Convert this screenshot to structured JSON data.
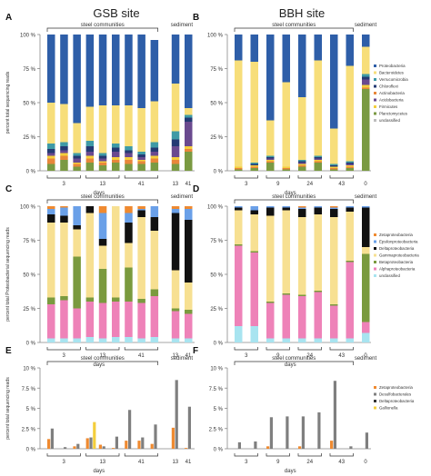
{
  "titles": {
    "left": "GSB site",
    "right": "BBH site"
  },
  "labels": {
    "steel": "steel communities",
    "sediment": "sediment",
    "days": "days",
    "ylabel_AB": "percent total sequencing reads",
    "ylabel_CD": "percent total Proteobacterial sequencing reads",
    "ylabel_EF": "percent total sequencing reads"
  },
  "colors": {
    "Proteobacteria": "#2e5ea8",
    "Bacteroidetes": "#f7de7a",
    "Verrucomicrobia": "#3f9aa6",
    "Chloroflexi": "#243a73",
    "Actinobacteria": "#e8873a",
    "Acidobacteria": "#6a4a8f",
    "Firmicutes": "#f4ce3c",
    "Planctomycetes": "#7a9a42",
    "unclassified": "#bdbdbd",
    "Zeta": "#ef8a30",
    "Epsilon": "#6aa0e8",
    "Delta": "#111111",
    "Gamma": "#f7e092",
    "Beta": "#7a9a3e",
    "Alpha": "#ee82b8",
    "uncl_CD": "#a8e4f0",
    "Zetaproteobacteria": "#ef8a30",
    "Desulfobacterales": "#7f7f7f",
    "Deltaproteobacteria": "#333333",
    "Gallionella": "#f4ce3c"
  },
  "chart_data": [
    {
      "panel": "A",
      "type": "bar",
      "stacked": true,
      "categories": [
        "3",
        "3",
        "3",
        "13",
        "13",
        "13",
        "41",
        "41",
        "41",
        "13",
        "41"
      ],
      "xlabel": "days",
      "ylabel": "percent total sequencing reads",
      "ylim": [
        0,
        100
      ],
      "yticks": [
        "0 %",
        "25 %",
        "50 %",
        "75 %",
        "100 %"
      ],
      "series": [
        {
          "name": "Planctomycetes",
          "values": [
            5,
            8,
            3,
            6,
            4,
            6,
            5,
            5,
            6,
            5,
            14
          ]
        },
        {
          "name": "Actinobacteria",
          "values": [
            4,
            3,
            2,
            3,
            2,
            2,
            3,
            2,
            3,
            3,
            2
          ]
        },
        {
          "name": "Firmicutes",
          "values": [
            2,
            2,
            1,
            2,
            1,
            2,
            2,
            1,
            2,
            2,
            2
          ]
        },
        {
          "name": "Acidobacteria",
          "values": [
            2,
            2,
            3,
            3,
            2,
            4,
            3,
            2,
            3,
            8,
            18
          ]
        },
        {
          "name": "Chloroflexi",
          "values": [
            3,
            3,
            2,
            4,
            2,
            3,
            2,
            2,
            3,
            5,
            3
          ]
        },
        {
          "name": "Verrucomicrobia",
          "values": [
            4,
            3,
            2,
            4,
            2,
            3,
            3,
            2,
            4,
            6,
            2
          ]
        },
        {
          "name": "Bacteroidetes",
          "values": [
            30,
            28,
            22,
            25,
            35,
            28,
            30,
            32,
            30,
            35,
            5
          ]
        },
        {
          "name": "Proteobacteria",
          "values": [
            50,
            51,
            65,
            53,
            52,
            52,
            52,
            54,
            45,
            36,
            54
          ]
        }
      ]
    },
    {
      "panel": "B",
      "type": "bar",
      "stacked": true,
      "categories": [
        "3",
        "3",
        "9",
        "9",
        "24",
        "24",
        "43",
        "43",
        "0"
      ],
      "xlabel": "days",
      "ylabel": "percent total sequencing reads",
      "ylim": [
        0,
        100
      ],
      "yticks": [
        "0 %",
        "25 %",
        "50 %",
        "75 %",
        "100 %"
      ],
      "series": [
        {
          "name": "Planctomycetes",
          "values": [
            1,
            2,
            6,
            1,
            3,
            6,
            1,
            2,
            60
          ]
        },
        {
          "name": "Actinobacteria",
          "values": [
            1,
            1,
            1,
            1,
            1,
            1,
            1,
            1,
            1
          ]
        },
        {
          "name": "Firmicutes",
          "values": [
            1,
            1,
            1,
            1,
            1,
            1,
            1,
            1,
            2
          ]
        },
        {
          "name": "Acidobacteria",
          "values": [
            0,
            0,
            1,
            0,
            1,
            1,
            0,
            1,
            4
          ]
        },
        {
          "name": "Chloroflexi",
          "values": [
            0,
            1,
            1,
            0,
            1,
            1,
            1,
            1,
            2
          ]
        },
        {
          "name": "Verrucomicrobia",
          "values": [
            0,
            1,
            1,
            0,
            1,
            1,
            1,
            1,
            2
          ]
        },
        {
          "name": "Bacteroidetes",
          "values": [
            78,
            74,
            26,
            62,
            46,
            70,
            26,
            70,
            20
          ]
        },
        {
          "name": "Proteobacteria",
          "values": [
            19,
            20,
            63,
            35,
            46,
            19,
            69,
            23,
            9
          ]
        }
      ]
    },
    {
      "panel": "C",
      "type": "bar",
      "stacked": true,
      "categories": [
        "3",
        "3",
        "3",
        "13",
        "13",
        "13",
        "41",
        "41",
        "41",
        "13",
        "41"
      ],
      "xlabel": "days",
      "ylabel": "percent total Proteobacterial sequencing reads",
      "ylim": [
        0,
        100
      ],
      "yticks": [
        "0 %",
        "25 %",
        "50 %",
        "75 %",
        "100 %"
      ],
      "series": [
        {
          "name": "unclassified",
          "values": [
            3,
            3,
            3,
            4,
            3,
            4,
            4,
            3,
            4,
            3,
            3
          ]
        },
        {
          "name": "Alphaproteobacteria",
          "values": [
            25,
            28,
            22,
            26,
            26,
            26,
            26,
            26,
            30,
            20,
            18
          ]
        },
        {
          "name": "Betaproteobacteria",
          "values": [
            5,
            3,
            38,
            3,
            25,
            3,
            25,
            3,
            5,
            2,
            3
          ]
        },
        {
          "name": "Gammaproteobacteria",
          "values": [
            55,
            54,
            20,
            62,
            17,
            67,
            18,
            60,
            43,
            28,
            20
          ]
        },
        {
          "name": "Deltaproteobacteria",
          "values": [
            6,
            5,
            3,
            5,
            5,
            0,
            15,
            5,
            10,
            42,
            46
          ]
        },
        {
          "name": "Epsilonproteobacteria",
          "values": [
            4,
            6,
            14,
            0,
            19,
            0,
            7,
            1,
            8,
            3,
            8
          ]
        },
        {
          "name": "Zetaproteobacteria",
          "values": [
            2,
            1,
            0,
            0,
            5,
            0,
            5,
            2,
            0,
            2,
            2
          ]
        }
      ]
    },
    {
      "panel": "D",
      "type": "bar",
      "stacked": true,
      "categories": [
        "3",
        "3",
        "9",
        "9",
        "24",
        "24",
        "43",
        "43",
        "0"
      ],
      "xlabel": "days",
      "ylabel": "percent total Proteobacterial sequencing reads",
      "ylim": [
        0,
        100
      ],
      "yticks": [
        "0 %",
        "25 %",
        "50 %",
        "75 %",
        "100 %"
      ],
      "series": [
        {
          "name": "unclassified",
          "values": [
            12,
            12,
            3,
            3,
            3,
            3,
            3,
            3,
            7
          ]
        },
        {
          "name": "Alphaproteobacteria",
          "values": [
            59,
            54,
            26,
            32,
            31,
            34,
            24,
            56,
            8
          ]
        },
        {
          "name": "Betaproteobacteria",
          "values": [
            1,
            1,
            1,
            1,
            1,
            1,
            1,
            1,
            50
          ]
        },
        {
          "name": "Gammaproteobacteria",
          "values": [
            25,
            27,
            63,
            61,
            57,
            56,
            64,
            36,
            5
          ]
        },
        {
          "name": "Deltaproteobacteria",
          "values": [
            2,
            3,
            6,
            2,
            6,
            5,
            6,
            3,
            29
          ]
        },
        {
          "name": "Epsilonproteobacteria",
          "values": [
            1,
            3,
            1,
            1,
            1,
            1,
            1,
            1,
            1
          ]
        },
        {
          "name": "Zetaproteobacteria",
          "values": [
            0,
            0,
            0,
            0,
            1,
            0,
            1,
            0,
            0
          ]
        }
      ]
    },
    {
      "panel": "E",
      "type": "bar",
      "categories": [
        "3",
        "3",
        "3",
        "13",
        "13",
        "13",
        "41",
        "41",
        "41",
        "13",
        "41"
      ],
      "xlabel": "days",
      "ylabel": "percent total sequencing reads",
      "ylim": [
        0,
        10
      ],
      "yticks": [
        "0 %",
        "2.5 %",
        "5 %",
        "7.5 %",
        "10 %"
      ],
      "series": [
        {
          "name": "Zetaproteobacteria",
          "values": [
            1.2,
            0,
            0.3,
            1.3,
            0.5,
            0.1,
            1.0,
            1.0,
            0.6,
            2.6,
            0.1
          ]
        },
        {
          "name": "Desulfobacterales",
          "values": [
            2.5,
            0.2,
            0.6,
            1.4,
            0.3,
            1.5,
            4.8,
            1.4,
            3.0,
            8.5,
            5.2
          ]
        },
        {
          "name": "Gallionella",
          "values": [
            0,
            0,
            0,
            3.3,
            0,
            0,
            0,
            0,
            0,
            0,
            0
          ]
        }
      ]
    },
    {
      "panel": "F",
      "type": "bar",
      "categories": [
        "3",
        "3",
        "9",
        "9",
        "24",
        "24",
        "43",
        "43",
        "0"
      ],
      "xlabel": "days",
      "ylabel": "percent total sequencing reads",
      "ylim": [
        0,
        10
      ],
      "yticks": [
        "0 %",
        "2.5 %",
        "5 %",
        "7.5 %",
        "10 %"
      ],
      "series": [
        {
          "name": "Zetaproteobacteria",
          "values": [
            0,
            0,
            0.3,
            0,
            0.3,
            0,
            1.0,
            0,
            0
          ]
        },
        {
          "name": "Desulfobacterales",
          "values": [
            0.8,
            0.9,
            3.9,
            4.0,
            4.0,
            4.5,
            8.4,
            0.3,
            2.0
          ]
        },
        {
          "name": "Deltaproteobacteria",
          "values": [
            0,
            0,
            0,
            0,
            0,
            0,
            0,
            0,
            0
          ]
        }
      ]
    }
  ],
  "legends": {
    "AB": [
      "Proteobacteria",
      "Bacteroidetes",
      "Verrucomicrobia",
      "Chloroflexi",
      "Actinobacteria",
      "Acidobacteria",
      "Firmicutes",
      "Planctomycetes",
      "unclassified"
    ],
    "CD": [
      "Zetaproteobacteria",
      "Epsilonproteobacteria",
      "Deltaproteobacteria",
      "Gammaproteobacteria",
      "Betaproteobacteria",
      "Alphaproteobacteria",
      "unclassified"
    ],
    "EF": [
      "Zetaproteobacteria",
      "Desulfobacterales",
      "Deltaproteobacteria",
      "Gallionella"
    ]
  }
}
